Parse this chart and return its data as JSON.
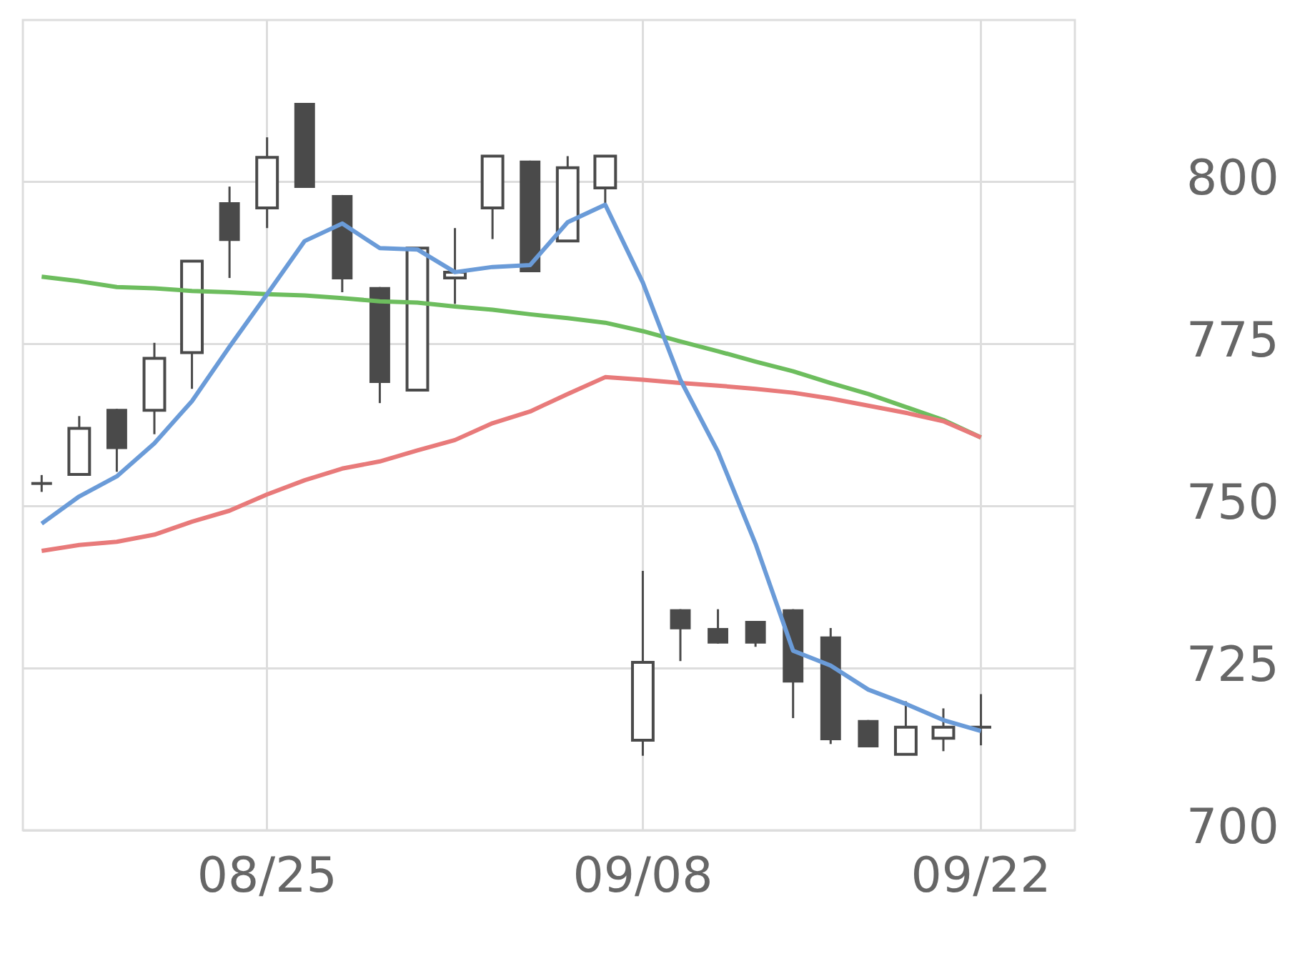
{
  "chart_data": {
    "type": "candlestick",
    "categories": [
      null,
      null,
      null,
      null,
      null,
      null,
      "08/25",
      null,
      null,
      null,
      null,
      null,
      null,
      null,
      null,
      null,
      "09/08",
      null,
      null,
      null,
      null,
      null,
      null,
      null,
      null,
      "09/22",
      null,
      null
    ],
    "ohlc": [
      [
        753.5,
        754.8,
        752.2,
        753.5
      ],
      [
        754.9,
        763.9,
        754.9,
        762.0
      ],
      [
        765.0,
        765.0,
        755.3,
        758.8
      ],
      [
        764.8,
        775.2,
        761.1,
        772.8
      ],
      [
        773.7,
        787.8,
        768.1,
        787.8
      ],
      [
        796.9,
        799.3,
        785.2,
        790.9
      ],
      [
        796.0,
        806.9,
        792.9,
        803.8
      ],
      [
        812.2,
        812.2,
        799.1,
        799.1
      ],
      [
        798.0,
        798.0,
        783.0,
        785.0
      ],
      [
        783.8,
        783.8,
        765.9,
        769.0
      ],
      [
        767.9,
        789.8,
        767.9,
        789.8
      ],
      [
        785.2,
        792.9,
        781.2,
        786.1
      ],
      [
        796.0,
        804.0,
        791.2,
        804.0
      ],
      [
        803.3,
        803.3,
        786.1,
        786.1
      ],
      [
        790.9,
        804.0,
        790.9,
        802.2
      ],
      [
        799.1,
        804.0,
        796.7,
        804.0
      ],
      [
        713.9,
        740.0,
        711.5,
        725.9
      ],
      [
        734.1,
        734.1,
        726.1,
        731.0
      ],
      [
        731.2,
        734.1,
        728.8,
        728.8
      ],
      [
        732.3,
        732.3,
        728.3,
        728.8
      ],
      [
        734.1,
        734.1,
        717.3,
        722.8
      ],
      [
        729.9,
        731.2,
        713.3,
        713.9
      ],
      [
        717.0,
        717.0,
        712.8,
        712.8
      ],
      [
        711.7,
        719.9,
        711.7,
        715.9
      ],
      [
        714.2,
        718.8,
        712.2,
        715.9
      ],
      [
        715.9,
        721.0,
        713.1,
        715.9
      ],
      null,
      null
    ],
    "series": [
      {
        "type": "line",
        "color": "#6a9bd8",
        "values": [
          747.3,
          751.5,
          754.6,
          759.7,
          766.2,
          774.6,
          782.7,
          790.9,
          793.6,
          789.8,
          789.6,
          786.1,
          786.9,
          787.2,
          793.8,
          796.5,
          784.5,
          769.5,
          758.4,
          744.2,
          727.7,
          725.4,
          721.7,
          719.5,
          717.0,
          715.3,
          null,
          null
        ]
      },
      {
        "type": "line",
        "color": "#e87a7a",
        "values": [
          743.1,
          744.0,
          744.5,
          745.6,
          747.6,
          749.3,
          751.8,
          754.0,
          755.8,
          756.9,
          758.6,
          760.2,
          762.8,
          764.6,
          767.3,
          769.9,
          769.5,
          769.0,
          768.6,
          768.1,
          767.5,
          766.6,
          765.5,
          764.4,
          763.1,
          760.6,
          null,
          null
        ]
      },
      {
        "type": "line",
        "color": "#6dbd5e",
        "values": [
          785.4,
          784.7,
          783.8,
          783.6,
          783.2,
          783.0,
          782.7,
          782.5,
          782.1,
          781.6,
          781.4,
          780.8,
          780.3,
          779.6,
          779.0,
          778.3,
          777.0,
          775.4,
          773.9,
          772.3,
          770.8,
          769.0,
          767.3,
          765.3,
          763.3,
          760.6,
          null,
          null
        ]
      }
    ],
    "ylim": [
      700,
      825
    ],
    "yticks": [
      700,
      725,
      750,
      775,
      800
    ],
    "grid": true,
    "marker": "none"
  }
}
